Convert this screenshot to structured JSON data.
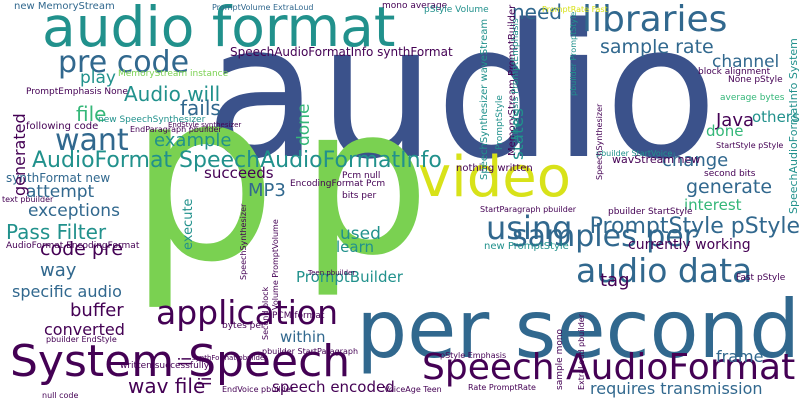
{
  "palette": {
    "purple": "#440154",
    "indigo": "#3b528b",
    "blue": "#31688e",
    "teal": "#21918c",
    "green": "#35b779",
    "lime": "#7ad151",
    "yellow": "#d8e219"
  },
  "words": [
    {
      "text": "audio",
      "color": "indigo"
    },
    {
      "text": "p",
      "color": "lime"
    },
    {
      "text": "p",
      "color": "lime"
    },
    {
      "text": "per second",
      "color": "blue"
    },
    {
      "text": "audio format",
      "color": "teal"
    },
    {
      "text": "System Speech",
      "color": "purple"
    },
    {
      "text": "video",
      "color": "yellow"
    },
    {
      "text": "Speech AudioFormat",
      "color": "purple"
    },
    {
      "text": "pre code",
      "color": "blue"
    },
    {
      "text": "libraries",
      "color": "blue"
    },
    {
      "text": "AudioFormat SpeechAudioFormatInfo",
      "color": "teal"
    },
    {
      "text": "application",
      "color": "purple"
    },
    {
      "text": "audio data",
      "color": "blue"
    },
    {
      "text": "samples per",
      "color": "blue"
    },
    {
      "text": "using",
      "color": "blue"
    },
    {
      "text": "want",
      "color": "blue"
    },
    {
      "text": "PromptStyle pStyle",
      "color": "blue"
    },
    {
      "text": "need",
      "color": "blue"
    },
    {
      "text": "sample rate",
      "color": "blue"
    },
    {
      "text": "channel",
      "color": "blue"
    },
    {
      "text": "Audio will",
      "color": "teal"
    },
    {
      "text": "play",
      "color": "teal"
    },
    {
      "text": "file",
      "color": "green"
    },
    {
      "text": "example",
      "color": "teal"
    },
    {
      "text": "Java",
      "color": "purple"
    },
    {
      "text": "change",
      "color": "blue"
    },
    {
      "text": "generate",
      "color": "blue"
    },
    {
      "text": "MP3",
      "color": "blue"
    },
    {
      "text": "Pass Filter",
      "color": "teal"
    },
    {
      "text": "code pre",
      "color": "purple"
    },
    {
      "text": "exceptions",
      "color": "blue"
    },
    {
      "text": "attempt",
      "color": "blue"
    },
    {
      "text": "way",
      "color": "blue"
    },
    {
      "text": "specific audio",
      "color": "blue"
    },
    {
      "text": "buffer",
      "color": "purple"
    },
    {
      "text": "converted",
      "color": "purple"
    },
    {
      "text": "wav file",
      "color": "purple"
    },
    {
      "text": "within",
      "color": "blue"
    },
    {
      "text": "speech encoded",
      "color": "purple"
    },
    {
      "text": "requires transmission",
      "color": "blue"
    },
    {
      "text": "frame",
      "color": "blue"
    },
    {
      "text": "PromptBuilder",
      "color": "teal"
    },
    {
      "text": "currently working",
      "color": "purple"
    },
    {
      "text": "used",
      "color": "teal"
    },
    {
      "text": "learn",
      "color": "teal"
    },
    {
      "text": "tag",
      "color": "purple"
    },
    {
      "text": "interest",
      "color": "green"
    },
    {
      "text": "succeeds",
      "color": "purple"
    },
    {
      "text": "done",
      "color": "green"
    },
    {
      "text": "others",
      "color": "teal"
    },
    {
      "text": "fails",
      "color": "blue"
    },
    {
      "text": "C",
      "color": "purple"
    },
    {
      "text": "generated",
      "color": "purple"
    },
    {
      "text": "states",
      "color": "teal"
    },
    {
      "text": "li",
      "color": "purple"
    },
    {
      "text": "li",
      "color": "purple"
    },
    {
      "text": "execute",
      "color": "teal"
    },
    {
      "text": "synthFormat new",
      "color": "blue"
    },
    {
      "text": "SpeechAudioFormatInfo synthFormat",
      "color": "purple"
    },
    {
      "text": "wavStream new",
      "color": "purple"
    },
    {
      "text": "following code",
      "color": "purple"
    },
    {
      "text": "nothing written",
      "color": "purple"
    },
    {
      "text": "new MemoryStream",
      "color": "blue"
    },
    {
      "text": "mono average",
      "color": "purple"
    },
    {
      "text": "new PromptStyle",
      "color": "teal"
    },
    {
      "text": "pStyle Volume",
      "color": "teal"
    },
    {
      "text": "average bytes",
      "color": "green"
    },
    {
      "text": "second bits",
      "color": "purple"
    },
    {
      "text": "written successfully",
      "color": "purple"
    },
    {
      "text": "PCM format",
      "color": "purple"
    },
    {
      "text": "bits per",
      "color": "purple"
    },
    {
      "text": "bytes per",
      "color": "purple"
    },
    {
      "text": "EncodingFormat Pcm",
      "color": "purple"
    },
    {
      "text": "Pcm null",
      "color": "purple"
    },
    {
      "text": "AudioFormat EncodingFormat",
      "color": "purple"
    },
    {
      "text": "pbuilder StartStyle",
      "color": "purple"
    },
    {
      "text": "Fast pStyle",
      "color": "purple"
    },
    {
      "text": "SpeechAudioFormatInfo System",
      "color": "teal"
    },
    {
      "text": "SpeechSynthesizer waveStream",
      "color": "teal"
    },
    {
      "text": "MemoryStream PromptBuilder",
      "color": "purple"
    },
    {
      "text": "PromptStyle",
      "color": "teal"
    },
    {
      "text": "PromptVolume ExtraLoud",
      "color": "blue"
    },
    {
      "text": "new SpeechSynthesizer",
      "color": "teal"
    },
    {
      "text": "MemoryStream instance",
      "color": "lime"
    },
    {
      "text": "PromptEmphasis None",
      "color": "purple"
    },
    {
      "text": "None pStyle",
      "color": "purple"
    },
    {
      "text": "EndParagraph pbuilder",
      "color": "purple"
    },
    {
      "text": "StartStyle pStyle",
      "color": "purple"
    },
    {
      "text": "StartParagraph pbuilder",
      "color": "purple"
    },
    {
      "text": "pbuilder StartParagraph",
      "color": "purple"
    },
    {
      "text": "EndVoice pbuilder",
      "color": "purple"
    },
    {
      "text": "null code",
      "color": "purple"
    },
    {
      "text": "pbuilder EndStyle",
      "color": "purple"
    },
    {
      "text": "VoiceAge Teen",
      "color": "purple"
    },
    {
      "text": "Rate PromptRate",
      "color": "purple"
    },
    {
      "text": "pStyle Emphasis",
      "color": "purple"
    },
    {
      "text": "synthFormat pbuilder",
      "color": "purple"
    },
    {
      "text": "Teen pbuilder",
      "color": "purple"
    },
    {
      "text": "Second block",
      "color": "purple"
    },
    {
      "text": "Volume PromptVolume",
      "color": "purple"
    },
    {
      "text": "block alignment",
      "color": "purple"
    },
    {
      "text": "text pbuilder",
      "color": "purple"
    },
    {
      "text": "sample mono",
      "color": "purple"
    },
    {
      "text": "Emphasis PromptEmphasis",
      "color": "teal"
    },
    {
      "text": "pbuilder PromptStyle",
      "color": "teal"
    },
    {
      "text": "pbuilder StartVoice",
      "color": "teal"
    },
    {
      "text": "EndStyle synthesizer",
      "color": "purple"
    },
    {
      "text": "SpeechSynthesizer",
      "color": "purple"
    },
    {
      "text": "PromptRate Fast",
      "color": "yellow"
    },
    {
      "text": "ExtraLoud pbuilder",
      "color": "purple"
    },
    {
      "text": "pbuilder EndParagraph",
      "color": "purple"
    }
  ]
}
